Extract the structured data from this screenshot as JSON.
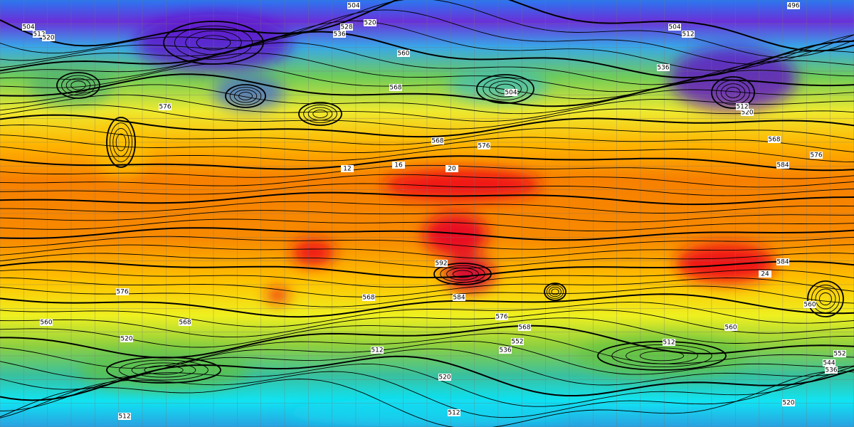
{
  "map": {
    "contour_labels": [
      504,
      496,
      504,
      512,
      520,
      536,
      528,
      520,
      560,
      568,
      504,
      504,
      512,
      536,
      568,
      576,
      568,
      576,
      584,
      576,
      592,
      584,
      576,
      568,
      560,
      584,
      576,
      568,
      560,
      568,
      560,
      520,
      512,
      536,
      552,
      520,
      512,
      512,
      520,
      544,
      536,
      552,
      512,
      520,
      512,
      12,
      16,
      20,
      24
    ]
  }
}
